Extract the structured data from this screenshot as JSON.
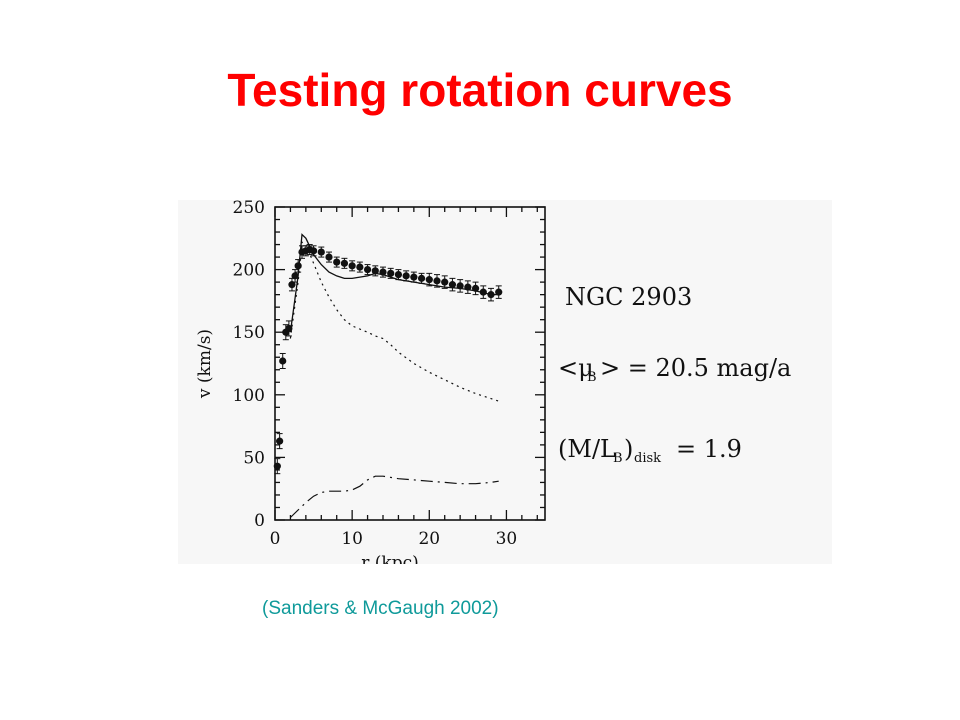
{
  "slide": {
    "title": "Testing rotation curves",
    "citation": "(Sanders & McGaugh 2002)",
    "title_color": "#ff0000",
    "citation_color": "#0f9a9a"
  },
  "chart_data": {
    "type": "line",
    "xlabel": "r (kpc)",
    "ylabel": "v (km/s)",
    "xlim": [
      0,
      35
    ],
    "ylim": [
      0,
      250
    ],
    "xticks": [
      0,
      10,
      20,
      30
    ],
    "yticks": [
      0,
      50,
      100,
      150,
      200,
      250
    ],
    "grid": false,
    "galaxy": "NGC 2903",
    "surface_brightness_label": "<μ",
    "surface_brightness_sub": "B",
    "surface_brightness_value": "> = 20.5 mag/a",
    "ml_label": "(M/L",
    "ml_sub_B": "B",
    "ml_close": ")",
    "ml_sub_disk": "disk",
    "ml_value": "= 1.9",
    "observed": {
      "x": [
        0.3,
        0.6,
        1.0,
        1.4,
        1.8,
        2.2,
        2.6,
        3.0,
        3.5,
        4.0,
        4.5,
        5.0,
        6.0,
        7.0,
        8.0,
        9.0,
        10.0,
        11.0,
        12.0,
        13.0,
        14.0,
        15.0,
        16.0,
        17.0,
        18.0,
        19.0,
        20.0,
        21.0,
        22.0,
        23.0,
        24.0,
        25.0,
        26.0,
        27.0,
        28.0,
        29.0
      ],
      "y": [
        43,
        63,
        127,
        150,
        153,
        188,
        195,
        203,
        214,
        215,
        216,
        215,
        214,
        210,
        206,
        205,
        203,
        202,
        200,
        199,
        198,
        197,
        196,
        195,
        194,
        193,
        192,
        191,
        190,
        188,
        187,
        186,
        185,
        182,
        180,
        182
      ],
      "yerr": [
        6,
        6,
        6,
        6,
        6,
        5,
        5,
        5,
        5,
        4,
        4,
        4,
        4,
        4,
        4,
        4,
        4,
        4,
        4,
        4,
        4,
        4,
        4,
        4,
        4,
        4,
        5,
        5,
        5,
        5,
        5,
        5,
        5,
        5,
        5,
        5
      ]
    },
    "series": [
      {
        "style": "solid",
        "x": [
          2.0,
          3.0,
          3.5,
          4.0,
          5.0,
          6.0,
          7.0,
          8.0,
          9.0,
          10.0,
          12.0,
          13.0,
          14.0,
          16.0,
          18.0,
          20.0,
          22.0,
          24.0,
          26.0,
          28.0,
          29.0
        ],
        "y": [
          150,
          195,
          228,
          225,
          212,
          204,
          198,
          195,
          193,
          193,
          195,
          197,
          196,
          192,
          190,
          188,
          186,
          185,
          183,
          180,
          180
        ]
      },
      {
        "style": "dotted",
        "x": [
          2.0,
          3.0,
          3.5,
          4.0,
          5.0,
          6.0,
          7.0,
          8.0,
          9.0,
          10.0,
          12.0,
          13.0,
          14.0,
          15.0,
          16.0,
          18.0,
          20.0,
          22.0,
          24.0,
          26.0,
          28.0,
          29.0
        ],
        "y": [
          145,
          190,
          222,
          220,
          205,
          190,
          178,
          168,
          160,
          155,
          150,
          147,
          145,
          140,
          134,
          125,
          118,
          112,
          106,
          101,
          97,
          95
        ]
      },
      {
        "style": "dashed",
        "x": [
          2.0,
          3.0,
          4.0,
          5.0,
          6.0,
          7.0,
          8.0,
          9.0,
          10.0,
          11.0,
          12.0,
          13.0,
          14.0,
          15.0,
          16.0,
          18.0,
          20.0,
          22.0,
          24.0,
          26.0,
          28.0,
          29.0
        ],
        "y": [
          2,
          8,
          14,
          19,
          22,
          23,
          23,
          23,
          24,
          27,
          32,
          35,
          35,
          34,
          33,
          32,
          31,
          30,
          29,
          29,
          30,
          31
        ]
      }
    ]
  }
}
